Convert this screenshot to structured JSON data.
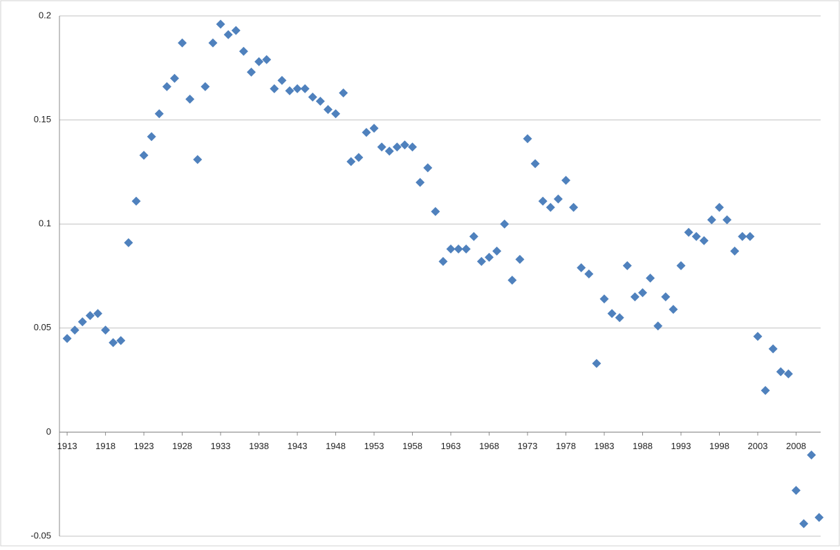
{
  "chart_data": {
    "type": "scatter",
    "x": [
      1913,
      1914,
      1915,
      1916,
      1917,
      1918,
      1919,
      1920,
      1921,
      1922,
      1923,
      1924,
      1925,
      1926,
      1927,
      1928,
      1929,
      1930,
      1931,
      1932,
      1933,
      1934,
      1935,
      1936,
      1937,
      1938,
      1939,
      1940,
      1941,
      1942,
      1943,
      1944,
      1945,
      1946,
      1947,
      1948,
      1949,
      1950,
      1951,
      1952,
      1953,
      1954,
      1955,
      1956,
      1957,
      1958,
      1959,
      1960,
      1961,
      1962,
      1963,
      1964,
      1965,
      1966,
      1967,
      1968,
      1969,
      1970,
      1971,
      1972,
      1973,
      1974,
      1975,
      1976,
      1977,
      1978,
      1979,
      1980,
      1981,
      1982,
      1983,
      1984,
      1985,
      1986,
      1987,
      1988,
      1989,
      1990,
      1991,
      1992,
      1993,
      1994,
      1995,
      1996,
      1997,
      1998,
      1999,
      2000,
      2001,
      2002,
      2003,
      2004,
      2005,
      2006,
      2007,
      2008,
      2009,
      2010,
      2011
    ],
    "values": [
      0.045,
      0.049,
      0.053,
      0.056,
      0.057,
      0.049,
      0.043,
      0.044,
      0.091,
      0.111,
      0.133,
      0.142,
      0.153,
      0.166,
      0.17,
      0.187,
      0.16,
      0.131,
      0.166,
      0.187,
      0.196,
      0.191,
      0.193,
      0.183,
      0.173,
      0.178,
      0.179,
      0.165,
      0.169,
      0.164,
      0.165,
      0.165,
      0.161,
      0.159,
      0.155,
      0.153,
      0.163,
      0.13,
      0.132,
      0.144,
      0.146,
      0.137,
      0.135,
      0.137,
      0.138,
      0.137,
      0.12,
      0.127,
      0.106,
      0.082,
      0.088,
      0.088,
      0.088,
      0.094,
      0.082,
      0.084,
      0.087,
      0.1,
      0.073,
      0.083,
      0.141,
      0.129,
      0.111,
      0.108,
      0.112,
      0.121,
      0.108,
      0.079,
      0.076,
      0.033,
      0.064,
      0.057,
      0.055,
      0.08,
      0.065,
      0.067,
      0.074,
      0.051,
      0.065,
      0.059,
      0.08,
      0.096,
      0.094,
      0.092,
      0.102,
      0.108,
      0.102,
      0.087,
      0.094,
      0.094,
      0.046,
      0.02,
      0.04,
      0.029,
      0.028,
      -0.028,
      -0.044,
      -0.011,
      -0.041
    ],
    "color": "#4f81bd",
    "xlim": [
      1912,
      2011.2
    ],
    "xticks": [
      1913,
      1918,
      1923,
      1928,
      1933,
      1938,
      1943,
      1948,
      1953,
      1958,
      1963,
      1968,
      1973,
      1978,
      1983,
      1988,
      1993,
      1998,
      2003,
      2008
    ],
    "ylim": [
      -0.05,
      0.2
    ],
    "yticks": [
      -0.05,
      0,
      0.05,
      0.1,
      0.15,
      0.2
    ],
    "grid": true
  }
}
